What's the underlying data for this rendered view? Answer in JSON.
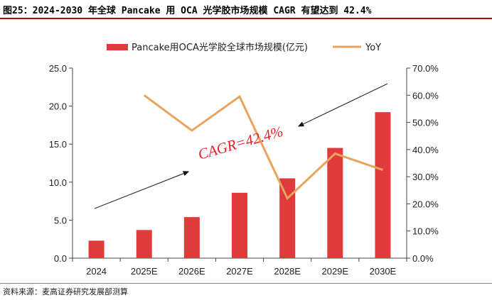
{
  "header": {
    "title": "图25：2024-2030 年全球 Pancake 用 OCA 光学胶市场规模 CAGR 有望达到 42.4%",
    "source": "资料来源：麦高证券研究发展部测算"
  },
  "colors": {
    "bar": "#e03a3a",
    "line": "#e8a45c",
    "annotation": "#e8202a",
    "accent_rule": "#c00000"
  },
  "chart_data": {
    "type": "bar",
    "categories": [
      "2024",
      "2025E",
      "2026E",
      "2027E",
      "2028E",
      "2029E",
      "2030E"
    ],
    "series": [
      {
        "name": "Pancake用OCA光学胶全球市场规模(亿元)",
        "type": "bar",
        "axis": "left",
        "values": [
          2.3,
          3.7,
          5.4,
          8.6,
          10.5,
          14.5,
          19.2
        ]
      },
      {
        "name": "YoY",
        "type": "line",
        "axis": "right",
        "values": [
          null,
          0.6,
          0.47,
          0.595,
          0.22,
          0.385,
          0.325
        ]
      }
    ],
    "y_left": {
      "min": 0,
      "max": 25,
      "step": 5,
      "ticks": [
        "0.0",
        "5.0",
        "10.0",
        "15.0",
        "20.0",
        "25.0"
      ]
    },
    "y_right": {
      "min": 0,
      "max": 0.7,
      "step": 0.1,
      "ticks": [
        "0.0%",
        "10.0%",
        "20.0%",
        "30.0%",
        "40.0%",
        "50.0%",
        "60.0%",
        "70.0%"
      ]
    },
    "legend": {
      "position": "top"
    },
    "annotation": {
      "text": "CAGR=42.4%"
    }
  }
}
